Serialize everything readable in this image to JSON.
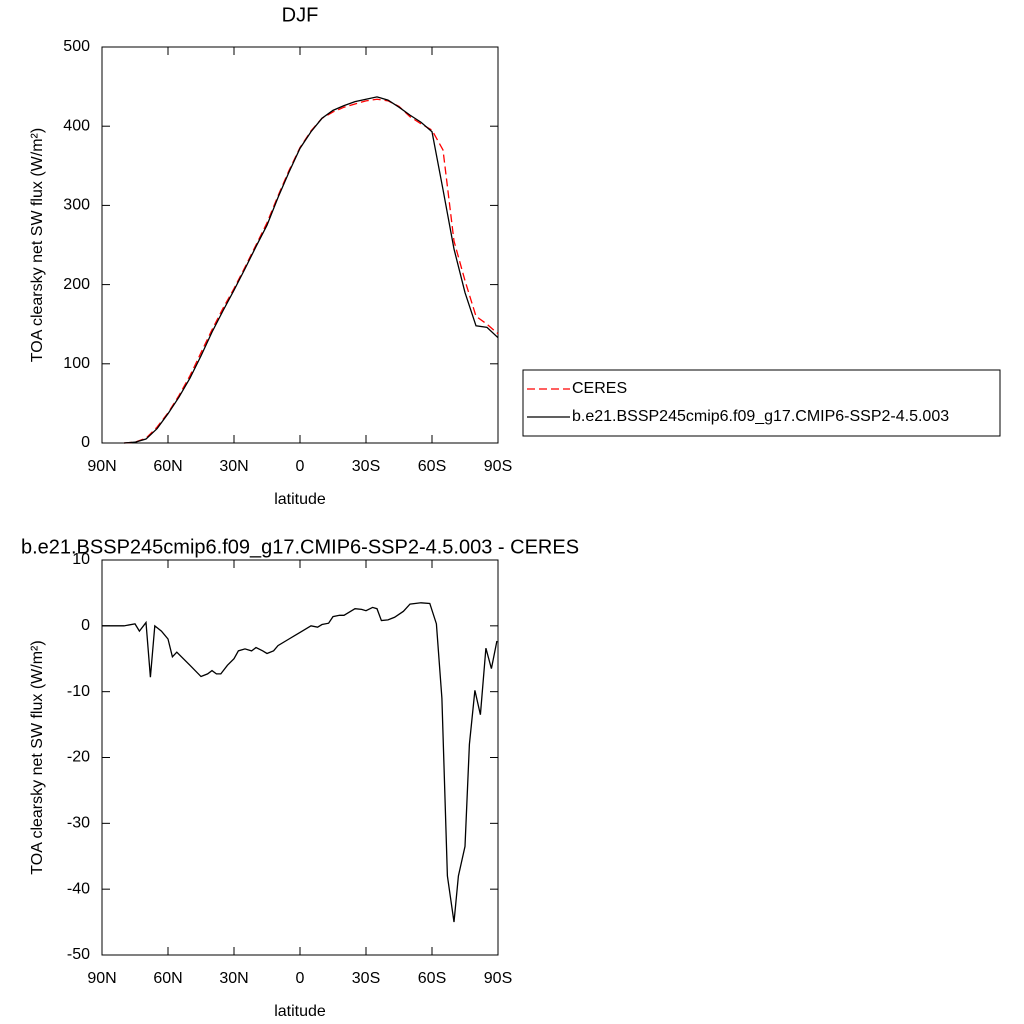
{
  "chart_data": [
    {
      "type": "line",
      "title": "DJF",
      "xlabel": "latitude",
      "ylabel": "TOA clearsky net SW flux (W/m²)",
      "x": [
        80,
        75,
        70,
        65,
        60,
        55,
        50,
        45,
        40,
        35,
        30,
        25,
        20,
        15,
        10,
        5,
        0,
        -5,
        -10,
        -15,
        -20,
        -25,
        -30,
        -35,
        -40,
        -45,
        -50,
        -55,
        -60,
        -65,
        -70,
        -75,
        -80,
        -85,
        -90
      ],
      "series": [
        {
          "name": "CERES",
          "color": "#ff0000",
          "dash": true,
          "values": [
            0,
            1,
            6,
            20,
            38,
            60,
            85,
            114,
            143,
            170,
            195,
            222,
            250,
            278,
            312,
            344,
            373,
            394,
            410,
            418,
            424,
            428,
            432,
            434,
            432,
            425,
            412,
            403,
            395,
            370,
            255,
            205,
            160,
            150,
            138
          ]
        },
        {
          "name": "b.e21.BSSP245cmip6.f09_g17.CMIP6-SSP2-4.5.003",
          "color": "#000000",
          "dash": false,
          "values": [
            0,
            1,
            5,
            18,
            37,
            58,
            82,
            110,
            140,
            167,
            193,
            220,
            248,
            275,
            310,
            342,
            372,
            393,
            410,
            420,
            426,
            431,
            434,
            437,
            433,
            424,
            414,
            405,
            393,
            320,
            245,
            190,
            148,
            146,
            133
          ]
        }
      ],
      "xlim": [
        90,
        -90
      ],
      "xticks": [
        {
          "value": 90,
          "label": "90N"
        },
        {
          "value": 60,
          "label": "60N"
        },
        {
          "value": 30,
          "label": "30N"
        },
        0,
        {
          "value": -30,
          "label": "30S"
        },
        {
          "value": -60,
          "label": "60S"
        },
        {
          "value": -90,
          "label": "90S"
        }
      ],
      "ylim": [
        0,
        500
      ],
      "yticks": [
        0,
        100,
        200,
        300,
        400,
        500
      ],
      "legend": "right"
    },
    {
      "type": "line",
      "title": "b.e21.BSSP245cmip6.f09_g17.CMIP6-SSP2-4.5.003 - CERES",
      "xlabel": "latitude",
      "ylabel": "TOA clearsky net SW flux (W/m²)",
      "x": [
        90,
        85,
        80,
        75,
        73,
        70,
        68,
        66,
        63,
        60,
        58,
        56,
        50,
        45,
        42,
        40,
        38,
        36,
        33,
        30,
        28,
        25,
        22,
        20,
        17,
        15,
        12,
        10,
        5,
        0,
        -5,
        -8,
        -10,
        -13,
        -15,
        -18,
        -20,
        -25,
        -28,
        -30,
        -33,
        -35,
        -37,
        -40,
        -43,
        -47,
        -50,
        -55,
        -59,
        -62,
        -64.5,
        -67,
        -70,
        -72,
        -75,
        -77,
        -79.5,
        -82,
        -84.5,
        -87,
        -89.5
      ],
      "color": "#000000",
      "values": [
        0,
        0,
        0,
        0.3,
        -0.8,
        0.5,
        -7.8,
        0,
        -0.8,
        -2,
        -4.7,
        -4,
        -6,
        -7.7,
        -7.3,
        -6.8,
        -7.3,
        -7.3,
        -6,
        -5,
        -3.8,
        -3.5,
        -3.8,
        -3.3,
        -3.8,
        -4.2,
        -3.8,
        -3,
        -2,
        -1,
        0,
        -0.2,
        0.2,
        0.4,
        1.4,
        1.6,
        1.6,
        2.6,
        2.5,
        2.3,
        2.8,
        2.6,
        0.8,
        0.9,
        1.3,
        2.2,
        3.3,
        3.5,
        3.4,
        0.3,
        -11,
        -38,
        -45,
        -38,
        -33.5,
        -18,
        -9.8,
        -13.5,
        -3.4,
        -6.5,
        -2.3
      ],
      "xlim": [
        90,
        -90
      ],
      "xticks": [
        {
          "value": 90,
          "label": "90N"
        },
        {
          "value": 60,
          "label": "60N"
        },
        {
          "value": 30,
          "label": "30N"
        },
        0,
        {
          "value": -30,
          "label": "30S"
        },
        {
          "value": -60,
          "label": "60S"
        },
        {
          "value": -90,
          "label": "90S"
        }
      ],
      "ylim": [
        -50,
        10
      ],
      "yticks": [
        -50,
        -40,
        -30,
        -20,
        -10,
        0,
        10
      ]
    }
  ]
}
